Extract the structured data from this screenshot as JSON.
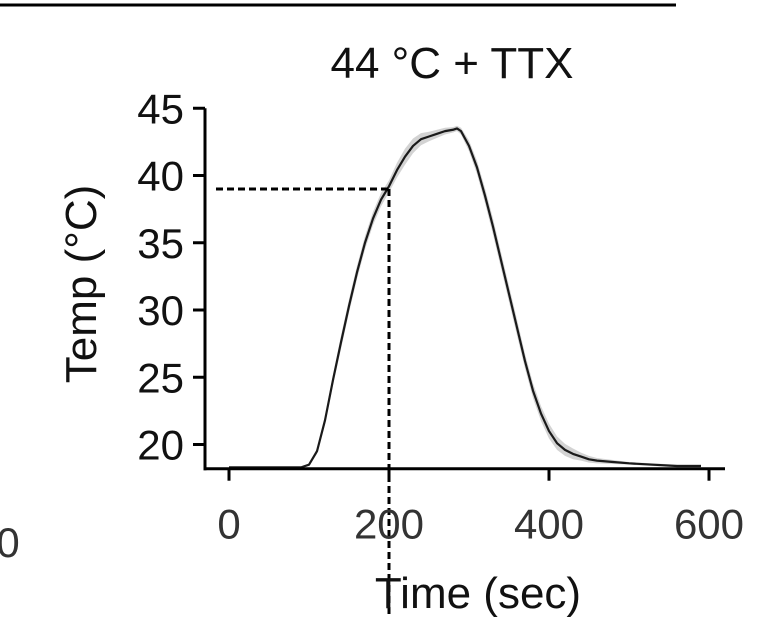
{
  "chart_data": {
    "type": "line",
    "title": "44 °C + TTX",
    "xlabel": "Time (sec)",
    "ylabel": "Temp (°C)",
    "xlim": [
      -30,
      620
    ],
    "ylim": [
      17,
      45
    ],
    "xticks": [
      0,
      200,
      400,
      600
    ],
    "yticks": [
      20,
      25,
      30,
      35,
      40,
      45
    ],
    "cut_tick_label": "0",
    "series": [
      {
        "name": "Temp",
        "x": [
          0,
          50,
          90,
          100,
          110,
          120,
          130,
          140,
          150,
          160,
          170,
          180,
          190,
          200,
          210,
          220,
          230,
          240,
          250,
          260,
          270,
          280,
          285,
          290,
          300,
          310,
          320,
          330,
          340,
          350,
          360,
          370,
          380,
          390,
          400,
          410,
          420,
          430,
          440,
          450,
          460,
          480,
          500,
          530,
          560,
          590
        ],
        "y": [
          18.3,
          18.3,
          18.3,
          18.5,
          19.5,
          21.8,
          24.8,
          27.6,
          30.3,
          32.8,
          35.0,
          36.8,
          38.2,
          39.2,
          40.4,
          41.4,
          42.2,
          42.7,
          42.9,
          43.1,
          43.3,
          43.4,
          43.5,
          43.3,
          42.2,
          40.6,
          38.5,
          36.2,
          33.7,
          31.2,
          28.7,
          26.2,
          24.0,
          22.3,
          21.0,
          20.1,
          19.6,
          19.3,
          19.1,
          18.9,
          18.8,
          18.7,
          18.6,
          18.5,
          18.4,
          18.4
        ]
      }
    ],
    "ci_halfwidth": [
      0.05,
      0.05,
      0.05,
      0.1,
      0.2,
      0.3,
      0.4,
      0.5,
      0.5,
      0.5,
      0.5,
      0.5,
      0.5,
      0.45,
      0.55,
      0.6,
      0.55,
      0.45,
      0.35,
      0.3,
      0.25,
      0.2,
      0.2,
      0.25,
      0.4,
      0.5,
      0.55,
      0.6,
      0.6,
      0.6,
      0.6,
      0.55,
      0.55,
      0.55,
      0.55,
      0.5,
      0.45,
      0.4,
      0.3,
      0.25,
      0.2,
      0.15,
      0.1,
      0.1,
      0.1,
      0.1
    ],
    "threshold": {
      "x": 200,
      "y": 39
    },
    "colors": {
      "line": "#1a1a1a",
      "band": "#d3d3d3",
      "axis": "#000000"
    }
  }
}
